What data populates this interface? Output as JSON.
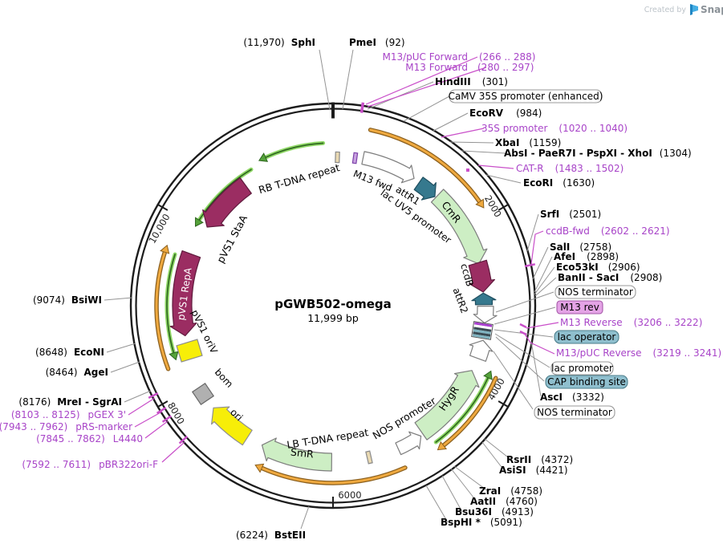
{
  "watermark": {
    "created_by": "Created by",
    "brand": "SnapGene"
  },
  "plasmid": {
    "name": "pGWB502-omega",
    "size": "11,999 bp"
  },
  "ticks": [
    "2000",
    "4000",
    "6000",
    "8000",
    "10,000"
  ],
  "features": {
    "rb_tdna": "RB T-DNA repeat",
    "pvs1_staa": "pVS1 StaA",
    "pvs1_repa": "pVS1 RepA",
    "pvs1_oriv": "pVS1 oriV",
    "bom": "bom",
    "ori": "ori",
    "smr": "SmR",
    "lb_tdna": "LB T-DNA repeat",
    "nos_promoter": "NOS promoter",
    "hygr": "HygR",
    "m13_fwd": "M13 fwd",
    "attr1": "attR1",
    "lac_uv5": "lac UV5 promoter",
    "cmr": "CmR",
    "ccdb": "ccdB",
    "attr2": "attR2"
  },
  "boxes": {
    "camv": "CaMV 35S promoter (enhanced)",
    "nos_terminator_1": "NOS terminator",
    "m13_rev": "M13 rev",
    "lac_operator": "lac operator",
    "lac_promoter": "lac promoter",
    "cap_binding": "CAP binding site",
    "nos_terminator_2": "NOS terminator"
  },
  "sites": {
    "sphi": {
      "name": "SphI",
      "pos": "(11,970)"
    },
    "pmei": {
      "name": "PmeI",
      "pos": "(92)"
    },
    "hindiii": {
      "name": "HindIII",
      "pos": "(301)"
    },
    "ecorv": {
      "name": "EcoRV",
      "pos": "(984)"
    },
    "xbai": {
      "name": "XbaI",
      "pos": "(1159)"
    },
    "absi": {
      "name": "AbsI - PaeR7I - PspXI - XhoI",
      "pos": "(1304)"
    },
    "ecori": {
      "name": "EcoRI",
      "pos": "(1630)"
    },
    "srfi": {
      "name": "SrfI",
      "pos": "(2501)"
    },
    "sali": {
      "name": "SalI",
      "pos": "(2758)"
    },
    "afei": {
      "name": "AfeI",
      "pos": "(2898)"
    },
    "eco53ki": {
      "name": "Eco53kI",
      "pos": "(2906)"
    },
    "banii": {
      "name": "BanII - SacI",
      "pos": "(2908)"
    },
    "asci": {
      "name": "AscI",
      "pos": "(3332)"
    },
    "rsrii": {
      "name": "RsrII",
      "pos": "(4372)"
    },
    "asisi": {
      "name": "AsiSI",
      "pos": "(4421)"
    },
    "zrai": {
      "name": "ZraI",
      "pos": "(4758)"
    },
    "aatii": {
      "name": "AatII",
      "pos": "(4760)"
    },
    "bsu36i": {
      "name": "Bsu36I",
      "pos": "(4913)"
    },
    "bsphi": {
      "name": "BspHI *",
      "pos": "(5091)"
    },
    "bsteii": {
      "name": "BstEII",
      "pos": "(6224)"
    },
    "mrei": {
      "name": "MreI - SgrAI",
      "pos": "(8176)"
    },
    "agei": {
      "name": "AgeI",
      "pos": "(8464)"
    },
    "econi": {
      "name": "EcoNI",
      "pos": "(8648)"
    },
    "bsiwi": {
      "name": "BsiWI",
      "pos": "(9074)"
    }
  },
  "primers": {
    "m13_puc_forward": {
      "name": "M13/pUC Forward",
      "range": "(266 .. 288)"
    },
    "m13_forward": {
      "name": "M13 Forward",
      "range": "(280 .. 297)"
    },
    "promoter_35s": {
      "name": "35S promoter",
      "range": "(1020 .. 1040)"
    },
    "cat_r": {
      "name": "CAT-R",
      "range": "(1483 .. 1502)"
    },
    "ccdb_fwd": {
      "name": "ccdB-fwd",
      "range": "(2602 .. 2621)"
    },
    "m13_reverse": {
      "name": "M13 Reverse",
      "range": "(3206 .. 3222)"
    },
    "m13_puc_reverse": {
      "name": "M13/pUC Reverse",
      "range": "(3219 .. 3241)"
    },
    "pbr322ori_f": {
      "name": "pBR322ori-F",
      "range": "(7592 .. 7611)"
    },
    "l4440": {
      "name": "L4440",
      "range": "(7845 .. 7862)"
    },
    "prs_marker": {
      "name": "pRS-marker",
      "range": "(7943 .. 7962)"
    },
    "pgex_3": {
      "name": "pGEX 3'",
      "range": "(8103 .. 8125)"
    }
  },
  "colors": {
    "ring": "#1c1c1c",
    "leader": "#949494",
    "white": "#ffffff",
    "grayStroke": "#7d7d7d",
    "geneGreen": "#cdeec4",
    "maroon": "#9b2d62",
    "maroonStroke": "#5f1b3d",
    "teal": "#36798e",
    "tealStroke": "#1f4f60",
    "yellow": "#f7ee08",
    "bomGray": "#b0b0b0",
    "tan": "#e9d9b2",
    "lilac": "#c9a2e0",
    "lilacStroke": "#7a3fa8",
    "arcGreen": "#90d867",
    "arcGreenDark": "#2c641e",
    "arcOrange": "#efa93f",
    "arcOrangeDark": "#8a5f1e",
    "primerPurple": "#a844c8",
    "magenta": "#c94fc9",
    "boxStroke": "#999999",
    "boxTeal": "#8fbfce",
    "boxTealStroke": "#4e7f8c",
    "violet": "#e4a3e6",
    "violetStroke": "#a558a8",
    "brandBlue": "#45aee4",
    "brandBlueDark": "#1f86c4",
    "watermarkGray": "#bdc4ca",
    "brandGray": "#8a9197"
  }
}
